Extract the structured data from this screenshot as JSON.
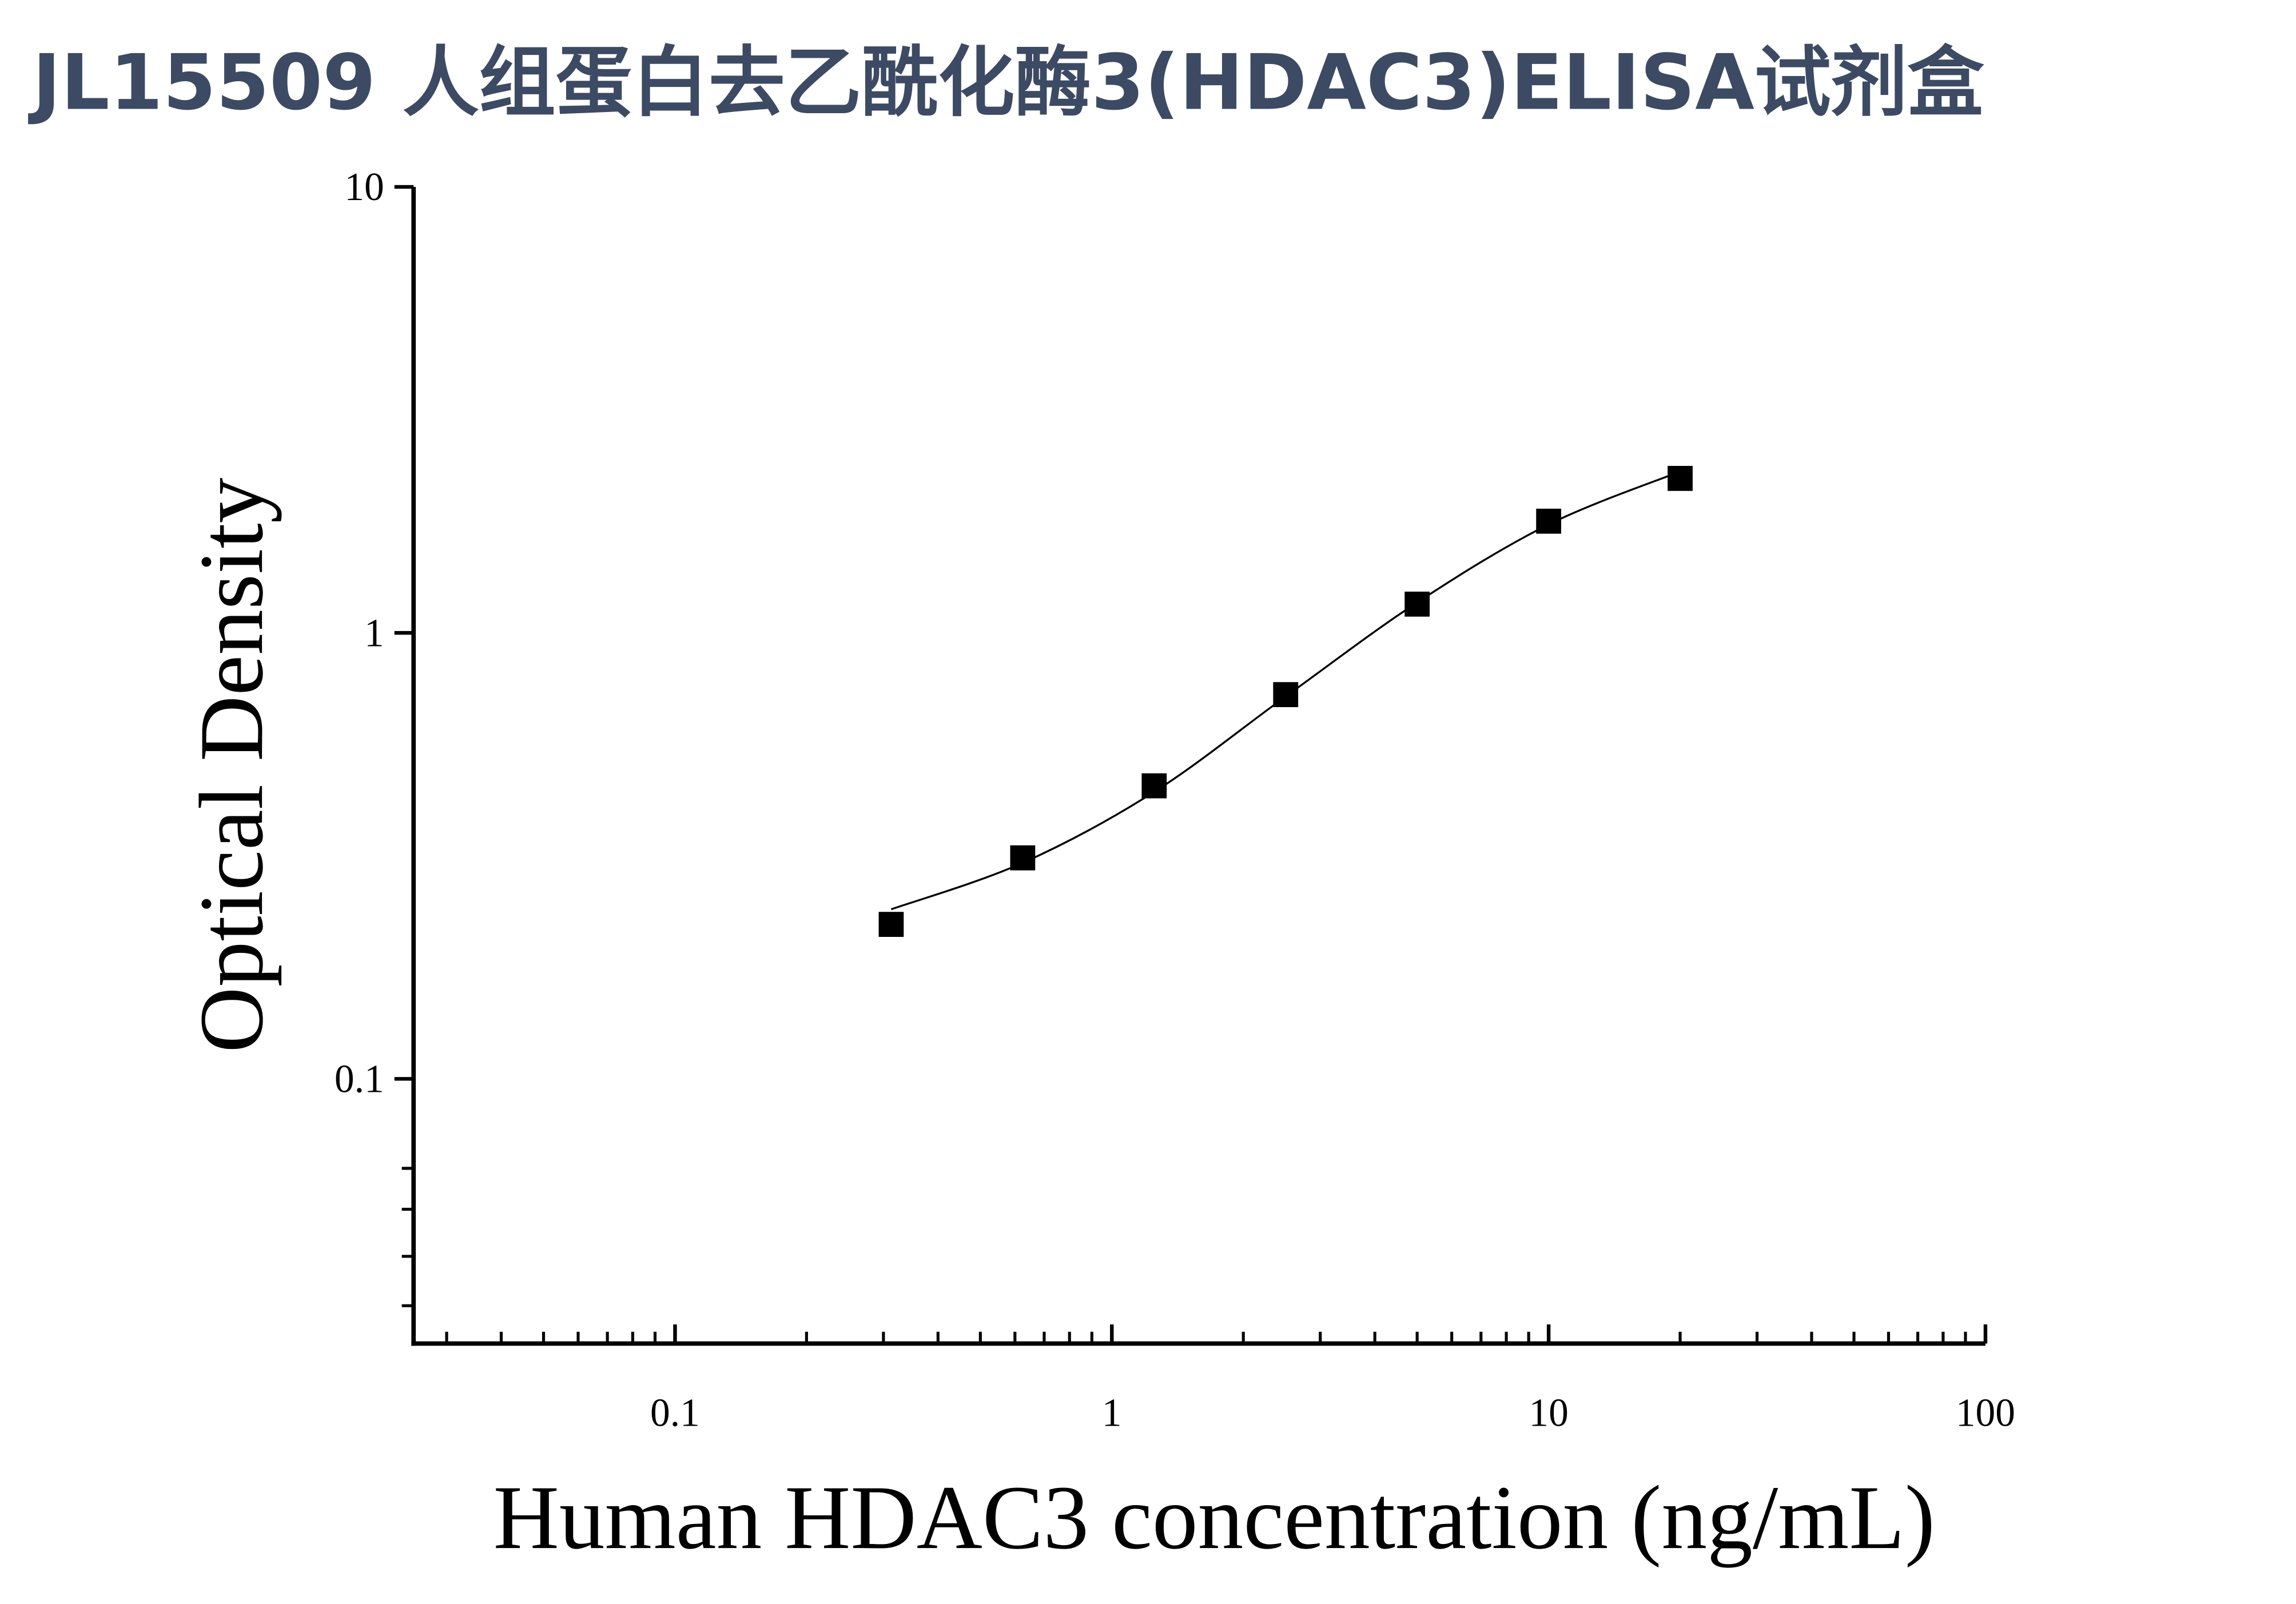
{
  "chart_data": {
    "type": "scatter",
    "title": "JL15509 人组蛋白去乙酰化酶3(HDAC3)ELISA试剂盒",
    "x_label": "Human HDAC3 concentration (ng/mL)",
    "y_label": "Optical Density",
    "x": [
      0.3125,
      0.625,
      1.25,
      2.5,
      5,
      10,
      20
    ],
    "values": [
      0.222,
      0.313,
      0.454,
      0.727,
      1.16,
      1.78,
      2.22
    ],
    "color": "#000000",
    "fit": {
      "x": [
        0.3125,
        0.625,
        1.25,
        2.5,
        5,
        10,
        20
      ],
      "values": [
        0.24,
        0.305,
        0.44,
        0.72,
        1.17,
        1.75,
        2.3
      ]
    },
    "x_log": true,
    "y_log": true,
    "xlim": [
      0.0252,
      100
    ],
    "ylim": [
      0.0255,
      10
    ],
    "xticks": [
      0.1,
      1,
      10,
      100
    ],
    "yticks": [
      0.1,
      1,
      10
    ],
    "xminor": [
      0.03,
      0.04,
      0.05,
      0.06,
      0.07,
      0.08,
      0.09,
      0.2,
      0.3,
      0.4,
      0.5,
      0.6,
      0.7,
      0.8,
      0.9,
      2,
      3,
      4,
      5,
      6,
      7,
      8,
      9,
      20,
      30,
      40,
      50,
      60,
      70,
      80,
      90
    ],
    "yminor": [
      0.063,
      0.051,
      0.04,
      0.031
    ],
    "grid": false
  }
}
